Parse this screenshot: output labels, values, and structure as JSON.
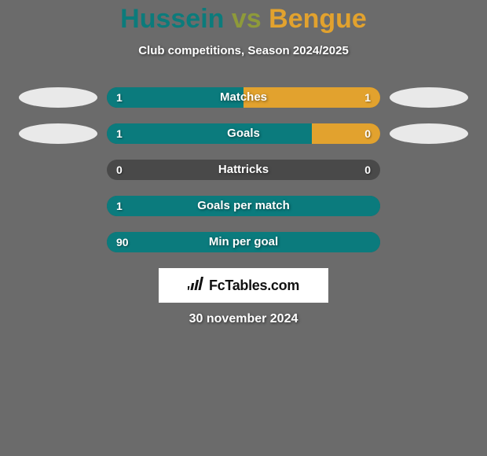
{
  "background_color": "#6b6b6b",
  "title": {
    "player1": "Hussein",
    "vs": "vs",
    "player2": "Bengue",
    "player1_color": "#0c7b7b",
    "vs_color": "#8e9a3a",
    "player2_color": "#e2a22e"
  },
  "subtitle": "Club competitions, Season 2024/2025",
  "ellipse": {
    "left_color": "#e9e9e9",
    "right_color": "#e9e9e9"
  },
  "bars": {
    "track_color": "#494949",
    "left_fill_color": "#0b7b7d",
    "right_fill_color": "#e2a22e",
    "rows": [
      {
        "label": "Matches",
        "left_val": "1",
        "right_val": "1",
        "left_pct": 50,
        "right_pct": 50,
        "show_ellipses": true
      },
      {
        "label": "Goals",
        "left_val": "1",
        "right_val": "0",
        "left_pct": 75,
        "right_pct": 25,
        "show_ellipses": true
      },
      {
        "label": "Hattricks",
        "left_val": "0",
        "right_val": "0",
        "left_pct": 0,
        "right_pct": 0,
        "show_ellipses": false
      },
      {
        "label": "Goals per match",
        "left_val": "1",
        "right_val": "",
        "left_pct": 100,
        "right_pct": 0,
        "show_ellipses": false
      },
      {
        "label": "Min per goal",
        "left_val": "90",
        "right_val": "",
        "left_pct": 100,
        "right_pct": 0,
        "show_ellipses": false
      }
    ]
  },
  "brand": "FcTables.com",
  "date": "30 november 2024"
}
